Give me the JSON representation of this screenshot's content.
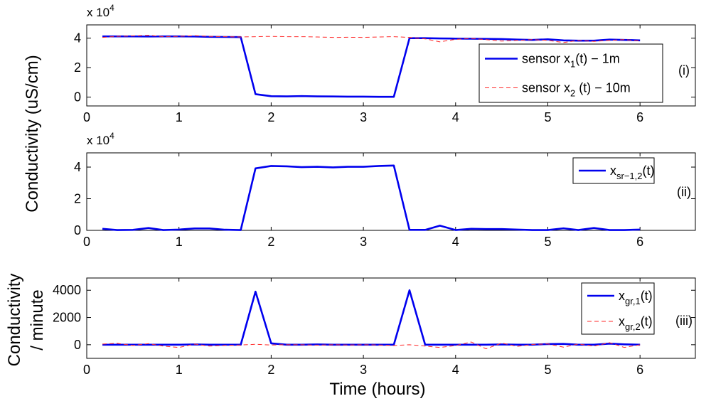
{
  "figure": {
    "ylabel_top": "Conductivity (uS/cm)",
    "ylabel_bottom_line1": "Conductivity",
    "ylabel_bottom_line2": "/ minute",
    "xlabel": "Time (hours)",
    "colors": {
      "solid": "#0000ee",
      "dashed": "#ff2a2a"
    }
  },
  "chart_data": [
    {
      "type": "line",
      "panel_label": "(i)",
      "exponent_label": "x 10",
      "exponent_power": "4",
      "xlim": [
        0,
        6.6
      ],
      "ylim": [
        -0.6,
        4.9
      ],
      "xticks": [
        "0",
        "1",
        "2",
        "3",
        "4",
        "5",
        "6"
      ],
      "yticks": [
        "0",
        "2",
        "4"
      ],
      "legend_position": "right",
      "x": [
        0.17,
        0.33,
        0.5,
        0.67,
        0.83,
        1.0,
        1.17,
        1.33,
        1.5,
        1.67,
        1.83,
        2.0,
        2.17,
        2.33,
        2.5,
        2.67,
        2.83,
        3.0,
        3.17,
        3.33,
        3.5,
        3.67,
        3.83,
        4.0,
        4.17,
        4.33,
        4.5,
        4.67,
        4.83,
        5.0,
        5.17,
        5.33,
        5.5,
        5.67,
        5.83,
        6.0
      ],
      "series": [
        {
          "name": "sensor x1(t) − 1m",
          "legend_main": "sensor x",
          "legend_sub": "1",
          "legend_rest": "(t) − 1m",
          "style": "solid",
          "values": [
            4.12,
            4.12,
            4.12,
            4.11,
            4.12,
            4.12,
            4.11,
            4.09,
            4.08,
            4.07,
            0.2,
            0.06,
            0.05,
            0.07,
            0.05,
            0.04,
            0.03,
            0.03,
            0.02,
            0.02,
            4.0,
            4.0,
            3.98,
            3.97,
            3.96,
            3.95,
            3.94,
            3.9,
            3.88,
            3.92,
            3.85,
            3.83,
            3.83,
            3.9,
            3.88,
            3.85
          ]
        },
        {
          "name": "sensor x2 (t) − 10m",
          "legend_main": "sensor x",
          "legend_sub": "2",
          "legend_rest": " (t) − 10m",
          "style": "dashed",
          "values": [
            4.05,
            4.12,
            4.15,
            4.2,
            4.1,
            4.12,
            4.17,
            4.12,
            4.1,
            4.08,
            4.1,
            4.12,
            4.1,
            4.1,
            4.08,
            4.05,
            4.06,
            4.05,
            4.08,
            4.1,
            4.05,
            3.95,
            3.75,
            3.92,
            3.98,
            3.9,
            3.8,
            3.85,
            3.9,
            3.85,
            3.7,
            3.85,
            3.78,
            3.85,
            3.9,
            3.82
          ]
        }
      ]
    },
    {
      "type": "line",
      "panel_label": "(ii)",
      "exponent_label": "x 10",
      "exponent_power": "4",
      "xlim": [
        0,
        6.6
      ],
      "ylim": [
        0,
        4.9
      ],
      "xticks": [
        "0",
        "1",
        "2",
        "3",
        "4",
        "5",
        "6"
      ],
      "yticks": [
        "0",
        "2",
        "4"
      ],
      "legend_position": "top-right",
      "x": [
        0.17,
        0.33,
        0.5,
        0.67,
        0.83,
        1.0,
        1.17,
        1.33,
        1.5,
        1.67,
        1.83,
        2.0,
        2.17,
        2.33,
        2.5,
        2.67,
        2.83,
        3.0,
        3.17,
        3.33,
        3.5,
        3.67,
        3.83,
        4.0,
        4.17,
        4.33,
        4.5,
        4.67,
        4.83,
        5.0,
        5.17,
        5.33,
        5.5,
        5.67,
        5.83,
        6.0
      ],
      "series": [
        {
          "name": "xsr−1,2(t)",
          "legend_main": "x",
          "legend_sub": "sr−1,2",
          "legend_rest": "(t)",
          "style": "solid",
          "values": [
            0.1,
            0.02,
            0.03,
            0.15,
            0.02,
            0.05,
            0.12,
            0.12,
            0.04,
            0.02,
            3.92,
            4.07,
            4.05,
            4.0,
            4.02,
            3.98,
            4.02,
            4.02,
            4.07,
            4.1,
            0.03,
            0.03,
            0.3,
            0.02,
            0.1,
            0.08,
            0.08,
            0.05,
            0.02,
            0.02,
            0.13,
            0.02,
            0.15,
            0.02,
            0.02,
            0.05
          ]
        }
      ]
    },
    {
      "type": "line",
      "panel_label": "(iii)",
      "exponent_label": "",
      "exponent_power": "",
      "xlim": [
        0,
        6.6
      ],
      "ylim": [
        -1000,
        4900
      ],
      "xticks": [
        "0",
        "1",
        "2",
        "3",
        "4",
        "5",
        "6"
      ],
      "yticks": [
        "0",
        "2000",
        "4000"
      ],
      "legend_position": "right",
      "x": [
        0.17,
        0.33,
        0.5,
        0.67,
        0.83,
        1.0,
        1.17,
        1.33,
        1.5,
        1.67,
        1.83,
        2.0,
        2.17,
        2.33,
        2.5,
        2.67,
        2.83,
        3.0,
        3.17,
        3.33,
        3.5,
        3.67,
        3.83,
        4.0,
        4.17,
        4.33,
        4.5,
        4.67,
        4.83,
        5.0,
        5.17,
        5.33,
        5.5,
        5.67,
        5.83,
        6.0
      ],
      "series": [
        {
          "name": "xgr,1(t)",
          "legend_main": "x",
          "legend_sub": "gr,1",
          "legend_rest": "(t)",
          "style": "solid",
          "values": [
            0,
            0,
            0,
            0,
            0,
            0,
            20,
            0,
            0,
            0,
            3900,
            100,
            0,
            0,
            20,
            0,
            0,
            0,
            0,
            0,
            4000,
            0,
            0,
            0,
            0,
            0,
            20,
            0,
            0,
            50,
            60,
            0,
            0,
            80,
            30,
            0
          ]
        },
        {
          "name": "xgr,2(t)",
          "legend_main": "x",
          "legend_sub": "gr,2",
          "legend_rest": "(t)",
          "style": "dashed",
          "values": [
            50,
            100,
            -50,
            80,
            -100,
            -200,
            50,
            -100,
            -50,
            -20,
            30,
            -20,
            0,
            0,
            -30,
            0,
            -20,
            0,
            -20,
            -60,
            0,
            -100,
            -200,
            -60,
            200,
            -300,
            120,
            -120,
            20,
            60,
            -180,
            50,
            -100,
            150,
            -200,
            0
          ]
        }
      ]
    }
  ]
}
